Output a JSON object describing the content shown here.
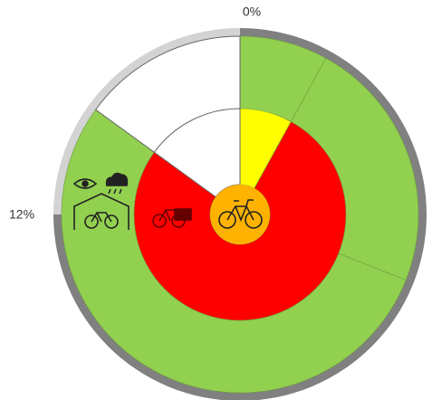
{
  "chart_data": {
    "type": "sunburst",
    "annotations": [
      "0%",
      "12%"
    ],
    "rings": [
      {
        "values": [
          75,
          25
        ],
        "colors": [
          "#808080",
          "#d3d3d3"
        ]
      },
      {
        "values": [
          8,
          23,
          54,
          15
        ],
        "colors": [
          "#92d050",
          "#92d050",
          "#92d050",
          "#ffffff"
        ]
      },
      {
        "values": [
          8,
          77,
          15
        ],
        "colors": [
          "#ffff00",
          "#ff0000",
          "#ffffff"
        ]
      }
    ]
  }
}
